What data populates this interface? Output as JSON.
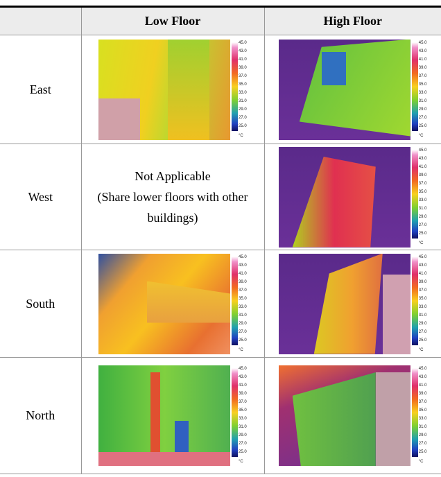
{
  "table": {
    "columns": [
      "Low Floor",
      "High Floor"
    ],
    "rows": [
      {
        "label": "East"
      },
      {
        "label": "West",
        "low_floor_note": [
          "Not Applicable",
          "(Share lower floors with other buildings)"
        ]
      },
      {
        "label": "South"
      },
      {
        "label": "North"
      }
    ],
    "thermal_scale": {
      "ticks": [
        "45.0",
        "43.0",
        "41.0",
        "39.0",
        "37.0",
        "35.0",
        "33.0",
        "31.0",
        "29.0",
        "27.0",
        "25.0"
      ],
      "unit": "°C"
    }
  }
}
